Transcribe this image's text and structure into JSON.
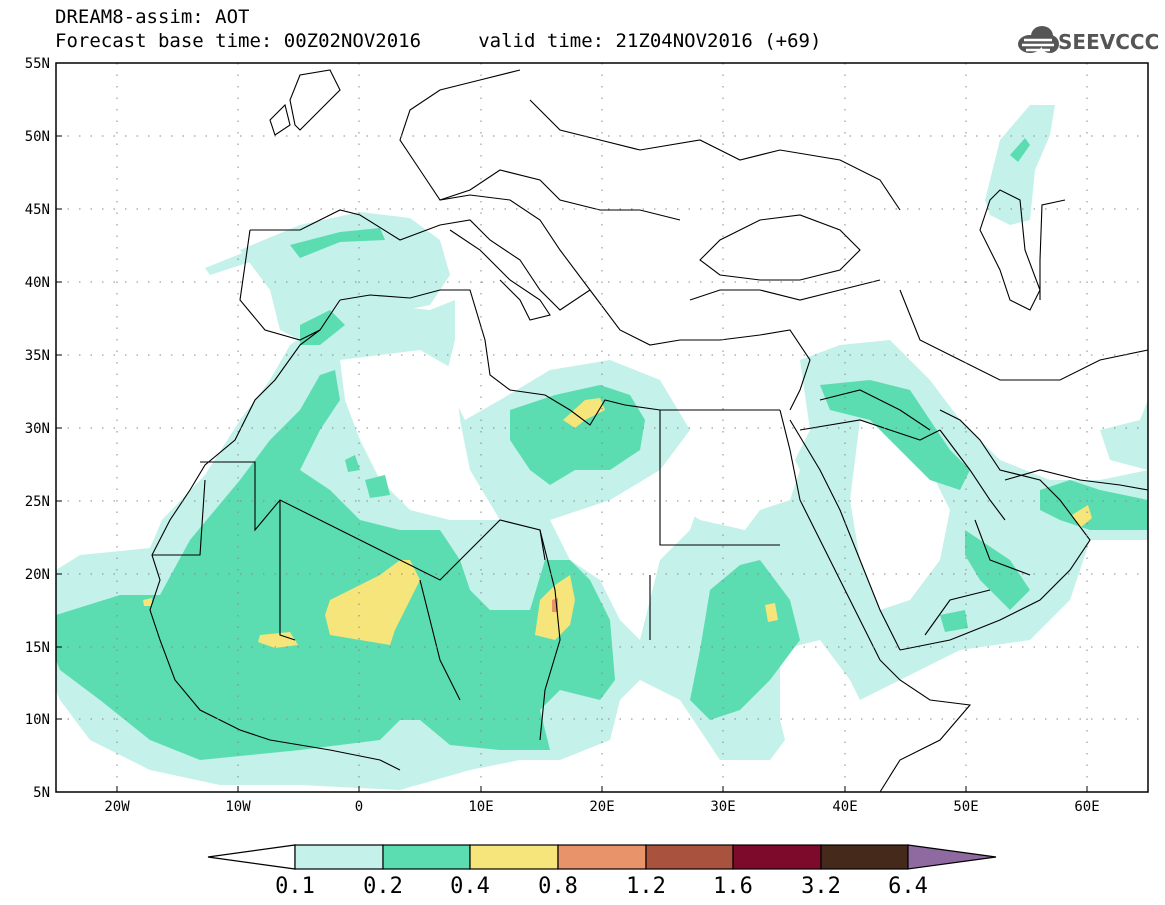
{
  "header": {
    "title_line1": "DREAM8-assim: AOT",
    "title_line2": "Forecast base time: 00Z02NOV2016     valid time: 21Z04NOV2016 (+69)",
    "logo_text": "SEEVCCC",
    "logo_icon": "cloud-icon"
  },
  "map": {
    "lon_range": [
      -25,
      65
    ],
    "lat_range": [
      5,
      55
    ],
    "grid": true,
    "lat_labels": [
      "55N",
      "50N",
      "45N",
      "40N",
      "35N",
      "30N",
      "25N",
      "20N",
      "15N",
      "10N",
      "5N"
    ],
    "lat_values": [
      55,
      50,
      45,
      40,
      35,
      30,
      25,
      20,
      15,
      10,
      5
    ],
    "lon_labels": [
      "20W",
      "10W",
      "0",
      "10E",
      "20E",
      "30E",
      "40E",
      "50E",
      "60E"
    ],
    "lon_values": [
      -20,
      -10,
      0,
      10,
      20,
      30,
      40,
      50,
      60
    ]
  },
  "colorbar": {
    "labels": [
      "0.1",
      "0.2",
      "0.4",
      "0.8",
      "1.2",
      "1.6",
      "3.2",
      "6.4"
    ],
    "colors": [
      "#c4f1ea",
      "#5bddb1",
      "#f5e57a",
      "#e8936a",
      "#a9533f",
      "#7d0a2a",
      "#45291a",
      "#8e6aa0"
    ],
    "below_color": "#ffffff"
  },
  "colors": {
    "level1": "#c4f1ea",
    "level2": "#5bddb1",
    "level3": "#f5e57a",
    "level4": "#e8936a"
  }
}
